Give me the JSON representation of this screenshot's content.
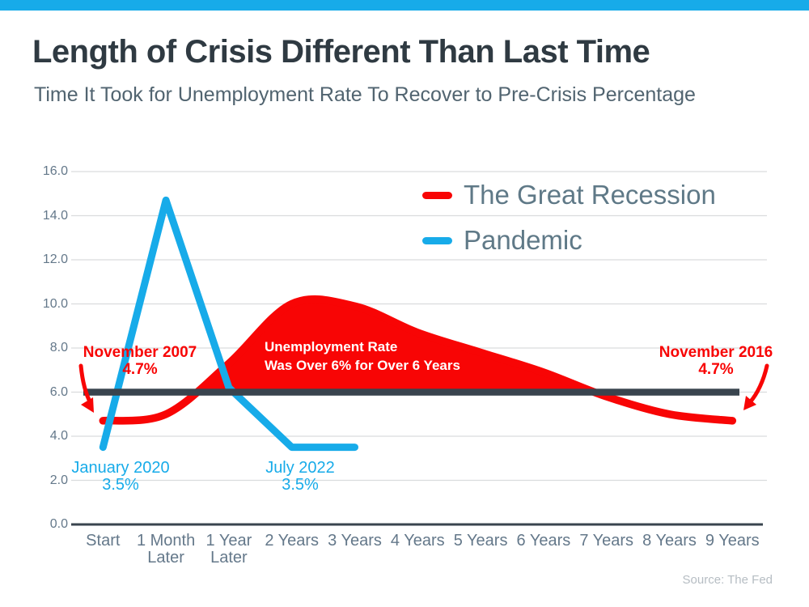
{
  "header": {
    "title": "Length of Crisis Different Than Last Time",
    "subtitle": "Time It Took for Unemployment Rate To Recover to Pre-Crisis Percentage"
  },
  "footer": {
    "source": "Source: The Fed"
  },
  "colors": {
    "accent_bar": "#17abe9",
    "recession_red": "#f80505",
    "pandemic_blue": "#17abe9",
    "reference_dark": "#39444e",
    "axis_line": "#39444e",
    "gridline": "#dadcdd",
    "title_text": "#2f3a42",
    "subtitle_text": "#516470",
    "axis_text": "#64788a",
    "legend_text": "#5f7987",
    "source_text": "#b6bdc3"
  },
  "legend": {
    "items": [
      {
        "label": "The Great Recession",
        "color": "#f80505"
      },
      {
        "label": "Pandemic",
        "color": "#17abe9"
      }
    ]
  },
  "annotations": {
    "recession_start": {
      "line1": "November 2007",
      "line2": "4.7%"
    },
    "recession_end": {
      "line1": "November 2016",
      "line2": "4.7%"
    },
    "pandemic_start": {
      "line1": "January 2020",
      "line2": "3.5%"
    },
    "pandemic_end": {
      "line1": "July 2022",
      "line2": "3.5%"
    },
    "area_note": {
      "line1": "Unemployment Rate",
      "line2": "Was Over 6% for Over 6 Years"
    }
  },
  "chart_data": {
    "type": "line",
    "title": "Length of Crisis Different Than Last Time",
    "subtitle": "Time It Took for Unemployment Rate To Recover to Pre-Crisis Percentage",
    "categories": [
      "Start",
      "1 Month Later",
      "1 Year Later",
      "2 Years",
      "3 Years",
      "4 Years",
      "5 Years",
      "6 Years",
      "7 Years",
      "8 Years",
      "9 Years"
    ],
    "series": [
      {
        "name": "The Great Recession",
        "color": "#f80505",
        "line_style": "smooth",
        "values": [
          4.7,
          5.0,
          7.3,
          10.0,
          9.9,
          8.7,
          7.8,
          6.9,
          5.8,
          5.0,
          4.7
        ]
      },
      {
        "name": "Pandemic",
        "color": "#17abe9",
        "line_style": "straight",
        "values": [
          3.5,
          14.7,
          6.2,
          3.5,
          3.5
        ]
      }
    ],
    "ylim": [
      0,
      16
    ],
    "yticks": [
      "0.0",
      "2.0",
      "4.0",
      "6.0",
      "8.0",
      "10.0",
      "12.0",
      "14.0",
      "16.0"
    ],
    "grid": true,
    "legend_position": "top-right",
    "reference_line": {
      "value": 6.0,
      "color": "#39444e"
    },
    "area_fill": {
      "series": "The Great Recession",
      "above_value": 6.0,
      "color": "#f80505"
    },
    "annotations": [
      {
        "target": "recession start point",
        "text": "November 2007 4.7%"
      },
      {
        "target": "recession end point",
        "text": "November 2016 4.7%"
      },
      {
        "target": "pandemic start point",
        "text": "January 2020 3.5%"
      },
      {
        "target": "pandemic end point",
        "text": "July 2022 3.5%"
      },
      {
        "target": "red filled area",
        "text": "Unemployment Rate Was Over 6% for Over 6 Years"
      }
    ]
  }
}
